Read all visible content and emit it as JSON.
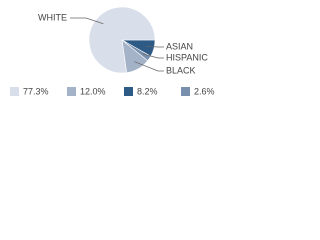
{
  "chart_data": {
    "type": "pie",
    "categories": [
      "WHITE",
      "BLACK",
      "ASIAN",
      "HISPANIC"
    ],
    "values": [
      77.3,
      12.0,
      8.2,
      2.6
    ],
    "value_labels": [
      "77.3%",
      "12.0%",
      "8.2%",
      "2.6%"
    ],
    "colors": [
      "#d9dfea",
      "#a5b3c9",
      "#2e5a86",
      "#7890ae"
    ]
  }
}
